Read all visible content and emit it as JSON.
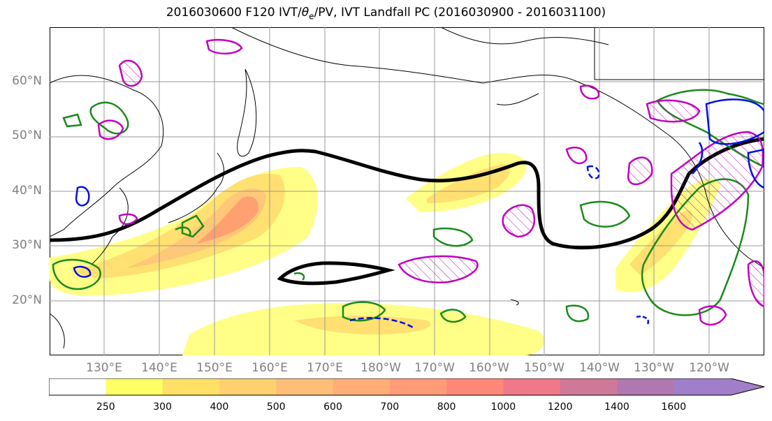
{
  "title": "2016030600 F120 IVT/θe/PV, IVT Landfall PC (2016030900 - 2016031100)",
  "title_parts": {
    "prefix": "2016030600 F120 IVT/",
    "theta": "θ",
    "sub": "e",
    "suffix": "/PV, IVT Landfall PC (2016030900 - 2016031100)"
  },
  "lat_labels": [
    "60°N",
    "50°N",
    "40°N",
    "30°N",
    "20°N"
  ],
  "lon_labels": [
    "130°E",
    "140°E",
    "150°E",
    "160°E",
    "170°E",
    "180°W",
    "170°W",
    "160°W",
    "150°W",
    "140°W",
    "130°W",
    "120°W"
  ],
  "colorbar": {
    "ticks": [
      "250",
      "300",
      "400",
      "500",
      "600",
      "700",
      "800",
      "1000",
      "1200",
      "1400",
      "1600"
    ],
    "colors": [
      "#ffffff",
      "#ffff66",
      "#ffe066",
      "#ffd070",
      "#ffbe78",
      "#ffae78",
      "#ff9c78",
      "#ff8878",
      "#f07888",
      "#d07898",
      "#b078b0",
      "#a07ec8"
    ]
  },
  "chart_data": {
    "type": "map",
    "projection": "plate carree, Pacific-centred",
    "lon_range": [
      120,
      250
    ],
    "lat_range": [
      10,
      70
    ],
    "grid": true,
    "fields": [
      "IVT (filled, kg m-1 s-1)",
      "theta-e contour (black)",
      "PV anomalies (green / magenta / blue contours)"
    ],
    "ivt_levels": [
      250,
      300,
      400,
      500,
      600,
      700,
      800,
      1000,
      1200,
      1400,
      1600
    ]
  }
}
